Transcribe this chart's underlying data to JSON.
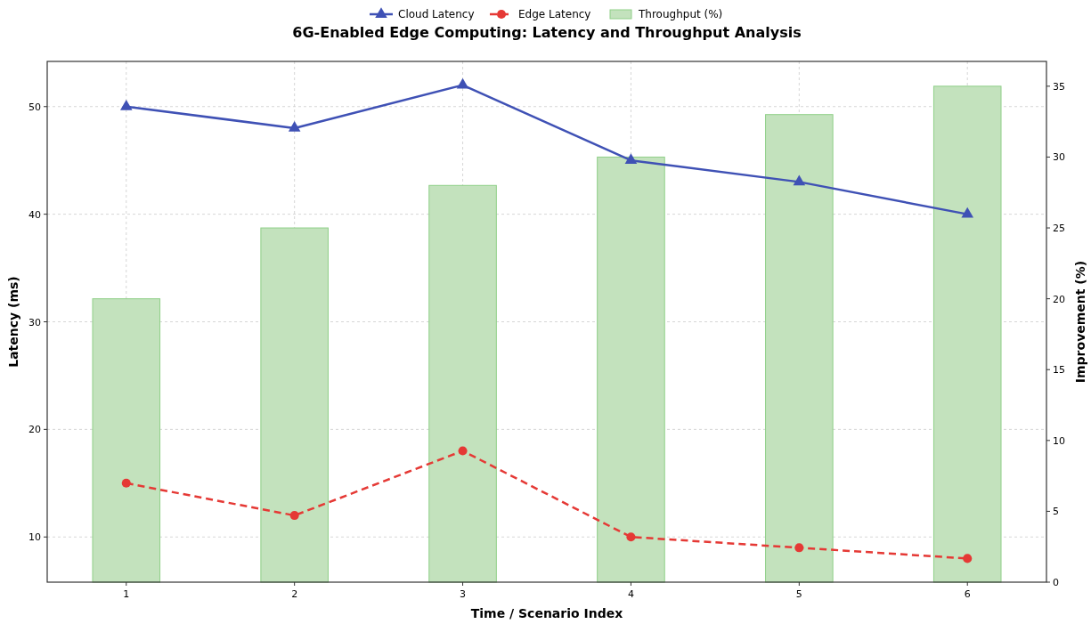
{
  "chart_data": {
    "type": "line",
    "title": "6G-Enabled Edge Computing: Latency and Throughput Analysis",
    "xlabel": "Time / Scenario Index",
    "ylabel": "Latency (ms)",
    "y2label": "Improvement (%)",
    "x": [
      1,
      2,
      3,
      4,
      5,
      6
    ],
    "xlim": [
      0.53,
      6.47
    ],
    "xticks": [
      1,
      2,
      3,
      4,
      5,
      6
    ],
    "ylim": [
      5.8,
      54.2
    ],
    "yticks": [
      10,
      20,
      30,
      40,
      50
    ],
    "y2lim": [
      0,
      36.75
    ],
    "y2ticks": [
      0,
      5,
      10,
      15,
      20,
      25,
      30,
      35
    ],
    "grid": true,
    "legend": "top",
    "series": [
      {
        "name": "Cloud Latency",
        "color": "#3f51b5",
        "values": [
          50,
          48,
          52,
          45,
          43,
          40
        ],
        "marker": "triangle",
        "line_style": "solid"
      },
      {
        "name": "Edge Latency",
        "color": "#e53935",
        "values": [
          15,
          12,
          18,
          10,
          9,
          8
        ],
        "marker": "circle",
        "line_style": "dashed"
      },
      {
        "name": "Throughput (%)",
        "type": "bar",
        "axis": "y2",
        "color": "#c3e2bd",
        "values": [
          20,
          25,
          28,
          30,
          33,
          35
        ]
      }
    ]
  }
}
